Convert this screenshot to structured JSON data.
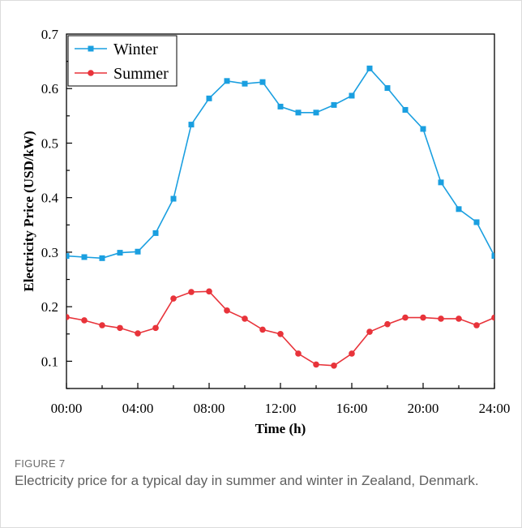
{
  "figure": {
    "label": "FIGURE 7",
    "caption": "Electricity price for a typical day in summer and winter in Zealand, Denmark."
  },
  "chart_data": {
    "type": "line",
    "title": "",
    "xlabel": "Time (h)",
    "ylabel": "Electricity Price (USD/kW)",
    "xlim": [
      0,
      24
    ],
    "ylim": [
      0.05,
      0.7
    ],
    "x_ticks": [
      0,
      4,
      8,
      12,
      16,
      20,
      24
    ],
    "x_tick_labels": [
      "00:00",
      "04:00",
      "08:00",
      "12:00",
      "16:00",
      "20:00",
      "24:00"
    ],
    "y_ticks": [
      0.1,
      0.2,
      0.3,
      0.4,
      0.5,
      0.6,
      0.7
    ],
    "y_tick_labels": [
      "0.1",
      "0.2",
      "0.3",
      "0.4",
      "0.5",
      "0.6",
      "0.7"
    ],
    "x": [
      0,
      1,
      2,
      3,
      4,
      5,
      6,
      7,
      8,
      9,
      10,
      11,
      12,
      13,
      14,
      15,
      16,
      17,
      18,
      19,
      20,
      21,
      22,
      23,
      24
    ],
    "grid": false,
    "legend_position": "top-left",
    "series": [
      {
        "name": "Winter",
        "color": "#1a9fe0",
        "marker": "square",
        "values": [
          0.293,
          0.291,
          0.289,
          0.299,
          0.301,
          0.335,
          0.398,
          0.534,
          0.582,
          0.614,
          0.609,
          0.612,
          0.567,
          0.556,
          0.556,
          0.57,
          0.587,
          0.637,
          0.601,
          0.561,
          0.526,
          0.428,
          0.379,
          0.355,
          0.293
        ]
      },
      {
        "name": "Summer",
        "color": "#e8333a",
        "marker": "circle",
        "values": [
          0.181,
          0.175,
          0.166,
          0.161,
          0.151,
          0.161,
          0.215,
          0.227,
          0.228,
          0.193,
          0.178,
          0.158,
          0.15,
          0.114,
          0.094,
          0.092,
          0.114,
          0.154,
          0.168,
          0.18,
          0.18,
          0.178,
          0.178,
          0.166,
          0.18
        ]
      }
    ]
  }
}
